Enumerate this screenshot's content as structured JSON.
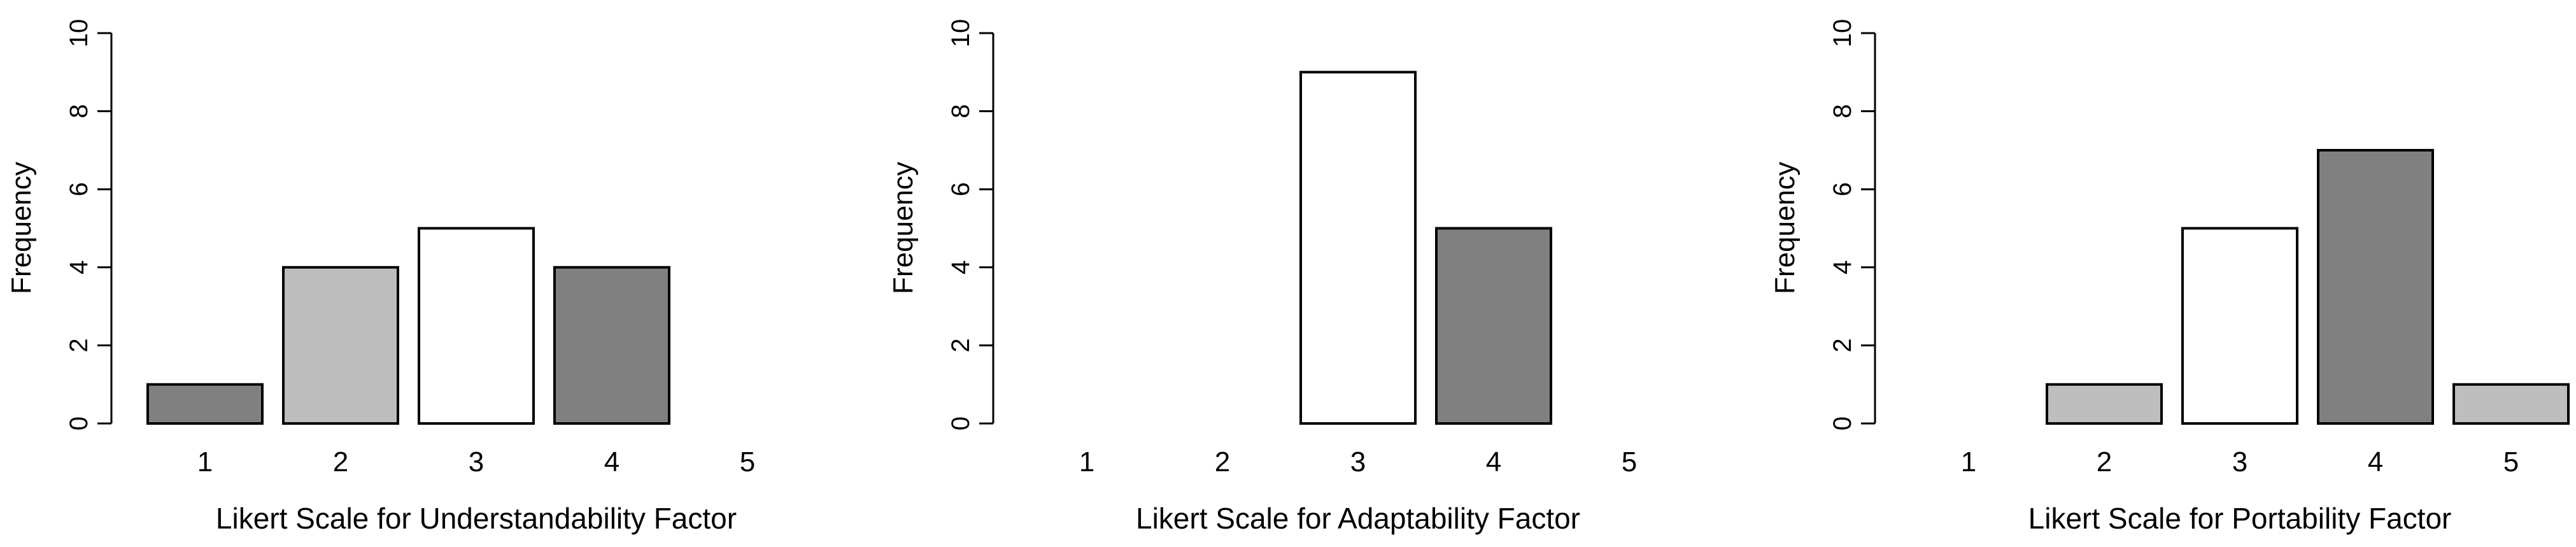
{
  "chart_data": [
    {
      "type": "bar",
      "categories": [
        "1",
        "2",
        "3",
        "4",
        "5"
      ],
      "values": [
        1,
        4,
        5,
        4,
        0
      ],
      "bar_colors": [
        "#808080",
        "#bebebe",
        "#ffffff",
        "#808080",
        "#bebebe"
      ],
      "xlabel": "Likert Scale for Understandability Factor",
      "ylabel": "Frequency",
      "ylim": [
        0,
        10
      ],
      "yticks": [
        "0",
        "2",
        "4",
        "6",
        "8",
        "10"
      ],
      "grid": false
    },
    {
      "type": "bar",
      "categories": [
        "1",
        "2",
        "3",
        "4",
        "5"
      ],
      "values": [
        0,
        0,
        9,
        5,
        0
      ],
      "bar_colors": [
        "#808080",
        "#bebebe",
        "#ffffff",
        "#808080",
        "#bebebe"
      ],
      "xlabel": "Likert Scale for Adaptability Factor",
      "ylabel": "Frequency",
      "ylim": [
        0,
        10
      ],
      "yticks": [
        "0",
        "2",
        "4",
        "6",
        "8",
        "10"
      ],
      "grid": false
    },
    {
      "type": "bar",
      "categories": [
        "1",
        "2",
        "3",
        "4",
        "5"
      ],
      "values": [
        0,
        1,
        5,
        7,
        1
      ],
      "bar_colors": [
        "#808080",
        "#bebebe",
        "#ffffff",
        "#808080",
        "#bebebe"
      ],
      "xlabel": "Likert Scale for Portability Factor",
      "ylabel": "Frequency",
      "ylim": [
        0,
        10
      ],
      "yticks": [
        "0",
        "2",
        "4",
        "6",
        "8",
        "10"
      ],
      "grid": false
    }
  ]
}
